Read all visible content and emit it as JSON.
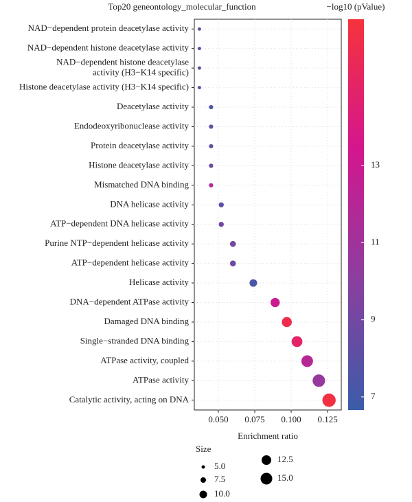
{
  "chart_data": {
    "type": "scatter",
    "title": "Top20 geneontology_molecular_function",
    "xlabel": "Enrichment ratio",
    "colorbar_title": "−log10 (pValue)",
    "size_legend_title": "Size",
    "categories": [
      "NAD−dependent protein deacetylase activity",
      "NAD−dependent histone deacetylase activity",
      "NAD−dependent histone deacetylase\nactivity (H3−K14 specific)",
      "Histone deacetylase activity (H3−K14 specific)",
      "Deacetylase activity",
      "Endodeoxyribonuclease activity",
      "Protein deacetylase activity",
      "Histone deacetylase activity",
      "Mismatched DNA binding",
      "DNA helicase activity",
      "ATP−dependent DNA helicase activity",
      "Purine NTP−dependent helicase activity",
      "ATP−dependent helicase activity",
      "Helicase activity",
      "DNA−dependent ATPase activity",
      "Damaged DNA binding",
      "Single−stranded DNA binding",
      "ATPase activity, coupled",
      "ATPase activity",
      "Catalytic activity, acting on DNA"
    ],
    "x": [
      0.037,
      0.037,
      0.037,
      0.037,
      0.045,
      0.045,
      0.045,
      0.045,
      0.045,
      0.052,
      0.052,
      0.06,
      0.06,
      0.074,
      0.089,
      0.097,
      0.104,
      0.111,
      0.119,
      0.126
    ],
    "sizes": [
      5,
      5,
      5,
      5,
      6,
      6,
      6,
      6,
      6,
      7,
      7,
      8,
      8,
      10,
      12,
      13,
      14,
      15,
      16,
      17
    ],
    "color_values": [
      8,
      8,
      8,
      8,
      7.5,
      7.8,
      8.3,
      8.5,
      12,
      8,
      9,
      9,
      8.8,
      7.3,
      13,
      16,
      15,
      12,
      10.5,
      16.5
    ],
    "xlim": [
      0.0335,
      0.1344
    ],
    "xticks": [
      {
        "value": 0.05,
        "label": "0.050"
      },
      {
        "value": 0.075,
        "label": "0.075"
      },
      {
        "value": 0.1,
        "label": "0.100"
      },
      {
        "value": 0.125,
        "label": "0.125"
      }
    ],
    "clim": [
      6.66,
      16.8
    ],
    "cticks": [
      7,
      9,
      11,
      13
    ],
    "colorscale": [
      "#3b5ca9",
      "#8b3f9f",
      "#d4168e",
      "#f5333c"
    ],
    "size_legend": [
      {
        "value": 5,
        "label": "5.0"
      },
      {
        "value": 7.5,
        "label": "7.5"
      },
      {
        "value": 10,
        "label": "10.0"
      },
      {
        "value": 12.5,
        "label": "12.5"
      },
      {
        "value": 15,
        "label": "15.0"
      }
    ],
    "marker_color_legend": "#000000",
    "grid": true
  }
}
